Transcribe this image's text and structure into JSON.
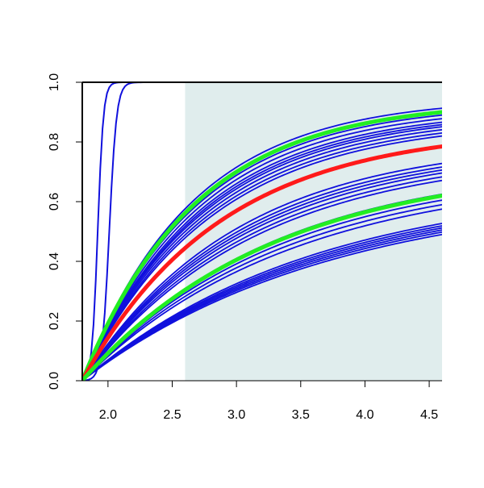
{
  "chart_data": {
    "type": "line",
    "title": "",
    "xlabel": "",
    "ylabel": "",
    "xlim": [
      1.8,
      4.6
    ],
    "ylim": [
      0.0,
      1.0
    ],
    "x_ticks": [
      "2.0",
      "2.5",
      "3.0",
      "3.5",
      "4.0",
      "4.5"
    ],
    "y_ticks": [
      "0.0",
      "0.2",
      "0.4",
      "0.6",
      "0.8",
      "1.0"
    ],
    "shaded_region": {
      "x": [
        2.6,
        4.6
      ],
      "color": "#e0eded"
    },
    "grid": false,
    "legend": "none",
    "colors": {
      "ensemble": "#1010dd",
      "median": "#ff1a1a",
      "bounds": "#22ee22",
      "axis": "#000000"
    },
    "curve_origin_x": 1.8,
    "ensemble_end_values": [
      0.913,
      0.89,
      0.878,
      0.866,
      0.858,
      0.851,
      0.841,
      0.83,
      0.82,
      0.728,
      0.716,
      0.706,
      0.696,
      0.683,
      0.671,
      0.625,
      0.605,
      0.59,
      0.575,
      0.527,
      0.519,
      0.512,
      0.505,
      0.498,
      0.49
    ],
    "fast_curves": [
      {
        "midpoint": 1.92,
        "steepness": 45
      },
      {
        "midpoint": 2.01,
        "steepness": 35
      }
    ],
    "highlight_curves": [
      {
        "role": "upper",
        "end_value": 0.9
      },
      {
        "role": "median",
        "end_value": 0.785
      },
      {
        "role": "lower",
        "end_value": 0.62
      }
    ]
  }
}
